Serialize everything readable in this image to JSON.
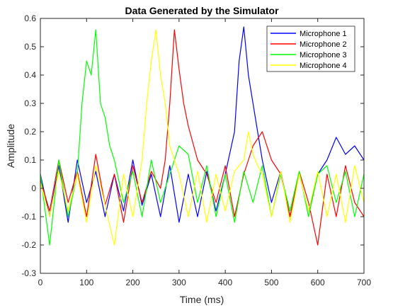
{
  "chart_data": {
    "type": "line",
    "title": "Data Generated by the Simulator",
    "xlabel": "Time (ms)",
    "ylabel": "Amplitude",
    "xlim": [
      0,
      700
    ],
    "ylim": [
      -0.3,
      0.6
    ],
    "xticks": [
      0,
      100,
      200,
      300,
      400,
      500,
      600,
      700
    ],
    "yticks": [
      -0.3,
      -0.2,
      -0.1,
      0,
      0.1,
      0.2,
      0.3,
      0.4,
      0.5,
      0.6
    ],
    "xtick_labels": [
      "0",
      "100",
      "200",
      "300",
      "400",
      "500",
      "600",
      "700"
    ],
    "ytick_labels": [
      "-0.3",
      "-0.2",
      "-0.1",
      "0",
      "0.1",
      "0.2",
      "0.3",
      "0.4",
      "0.5",
      "0.6"
    ],
    "grid": false,
    "legend_position": "top-right",
    "series": [
      {
        "name": "Microphone 1",
        "color": "#0000ff",
        "x": [
          0,
          20,
          40,
          60,
          80,
          100,
          120,
          140,
          160,
          180,
          200,
          220,
          240,
          260,
          280,
          300,
          320,
          340,
          360,
          380,
          400,
          420,
          430,
          440,
          450,
          460,
          470,
          480,
          500,
          520,
          540,
          560,
          580,
          600,
          620,
          640,
          660,
          680,
          700
        ],
        "y": [
          0.05,
          -0.1,
          0.08,
          -0.12,
          0.1,
          -0.05,
          0.06,
          -0.1,
          0.05,
          -0.08,
          0.1,
          -0.06,
          0.05,
          -0.1,
          0.08,
          -0.12,
          0.05,
          -0.1,
          0.06,
          -0.08,
          0.05,
          0.2,
          0.45,
          0.57,
          0.4,
          0.3,
          0.2,
          0.1,
          -0.05,
          0.06,
          -0.1,
          0.05,
          -0.08,
          0.05,
          0.1,
          0.18,
          0.12,
          0.15,
          0.1
        ]
      },
      {
        "name": "Microphone 2",
        "color": "#ff0000",
        "x": [
          0,
          20,
          40,
          60,
          80,
          100,
          120,
          140,
          160,
          180,
          200,
          220,
          240,
          260,
          270,
          280,
          290,
          300,
          310,
          320,
          340,
          360,
          380,
          400,
          420,
          440,
          460,
          480,
          500,
          520,
          540,
          560,
          580,
          600,
          620,
          640,
          660,
          680,
          700
        ],
        "y": [
          0.03,
          -0.08,
          0.1,
          -0.05,
          0.06,
          -0.1,
          0.12,
          -0.06,
          0.05,
          -0.12,
          0.08,
          -0.05,
          0.06,
          0.0,
          0.1,
          0.3,
          0.56,
          0.42,
          0.3,
          0.22,
          0.1,
          0.05,
          -0.05,
          0.08,
          -0.1,
          0.05,
          0.15,
          0.2,
          0.1,
          0.05,
          -0.1,
          0.06,
          -0.05,
          -0.2,
          0.05,
          -0.1,
          0.08,
          -0.05,
          -0.1
        ]
      },
      {
        "name": "Microphone 3",
        "color": "#00ff00",
        "x": [
          0,
          20,
          40,
          60,
          80,
          90,
          100,
          110,
          120,
          130,
          140,
          150,
          160,
          180,
          200,
          220,
          240,
          260,
          280,
          300,
          320,
          340,
          360,
          380,
          400,
          420,
          440,
          460,
          480,
          500,
          520,
          540,
          560,
          580,
          600,
          620,
          640,
          660,
          680,
          700
        ],
        "y": [
          0.05,
          -0.2,
          0.1,
          -0.1,
          0.05,
          0.3,
          0.45,
          0.4,
          0.56,
          0.3,
          0.25,
          0.15,
          0.1,
          -0.05,
          0.06,
          -0.1,
          0.1,
          -0.05,
          0.05,
          0.15,
          0.12,
          -0.05,
          0.08,
          -0.1,
          0.05,
          -0.12,
          0.06,
          -0.05,
          0.08,
          -0.1,
          0.05,
          -0.08,
          0.06,
          -0.1,
          0.05,
          0.08,
          -0.05,
          0.06,
          -0.1,
          0.05
        ]
      },
      {
        "name": "Microphone 4",
        "color": "#ffff00",
        "x": [
          0,
          20,
          40,
          60,
          80,
          100,
          120,
          140,
          160,
          180,
          200,
          220,
          230,
          240,
          250,
          260,
          270,
          280,
          300,
          320,
          340,
          360,
          380,
          400,
          420,
          440,
          450,
          460,
          470,
          480,
          500,
          520,
          540,
          560,
          580,
          600,
          620,
          640,
          660,
          680,
          700
        ],
        "y": [
          0.02,
          -0.1,
          0.06,
          -0.08,
          0.05,
          -0.12,
          0.08,
          -0.06,
          -0.2,
          0.05,
          -0.1,
          0.1,
          0.3,
          0.45,
          0.56,
          0.4,
          0.3,
          0.15,
          0.05,
          -0.1,
          0.06,
          -0.12,
          0.05,
          -0.08,
          0.06,
          0.1,
          0.2,
          0.12,
          0.08,
          0.05,
          -0.1,
          0.06,
          -0.12,
          0.05,
          -0.08,
          0.06,
          -0.1,
          0.05,
          -0.12,
          0.08,
          -0.05
        ]
      }
    ]
  }
}
